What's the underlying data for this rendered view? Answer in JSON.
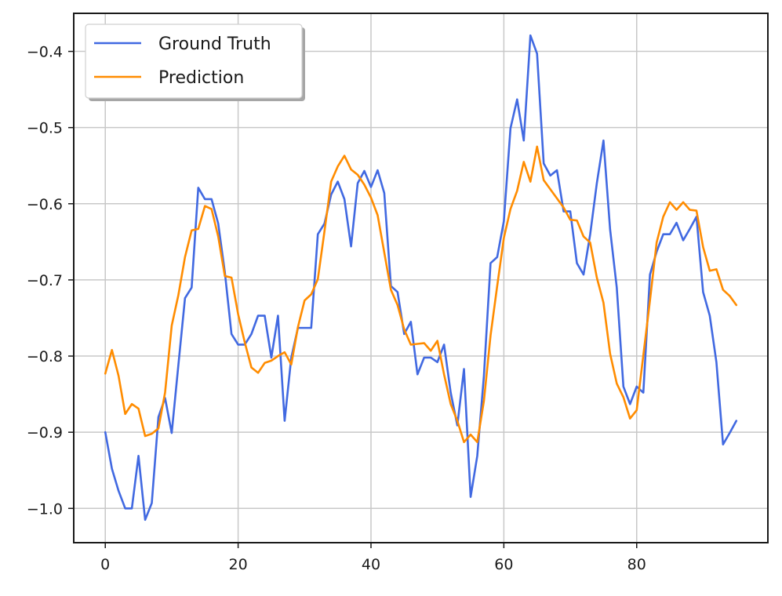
{
  "chart_data": {
    "type": "line",
    "title": "",
    "xlabel": "",
    "ylabel": "",
    "xlim": [
      -4.75,
      99.75
    ],
    "ylim": [
      -1.045,
      -0.35
    ],
    "xticks": [
      0,
      20,
      40,
      60,
      80
    ],
    "yticks": [
      -1.0,
      -0.9,
      -0.8,
      -0.7,
      -0.6,
      -0.5,
      -0.4
    ],
    "ytick_labels": [
      "−1.0",
      "−0.9",
      "−0.8",
      "−0.7",
      "−0.6",
      "−0.5",
      "−0.4"
    ],
    "xtick_labels": [
      "0",
      "20",
      "40",
      "60",
      "80"
    ],
    "grid": true,
    "legend_position": "top-left",
    "x": [
      0,
      1,
      2,
      3,
      4,
      5,
      6,
      7,
      8,
      9,
      10,
      11,
      12,
      13,
      14,
      15,
      16,
      17,
      18,
      19,
      20,
      21,
      22,
      23,
      24,
      25,
      26,
      27,
      28,
      29,
      30,
      31,
      32,
      33,
      34,
      35,
      36,
      37,
      38,
      39,
      40,
      41,
      42,
      43,
      44,
      45,
      46,
      47,
      48,
      49,
      50,
      51,
      52,
      53,
      54,
      55,
      56,
      57,
      58,
      59,
      60,
      61,
      62,
      63,
      64,
      65,
      66,
      67,
      68,
      69,
      70,
      71,
      72,
      73,
      74,
      75,
      76,
      77,
      78,
      79,
      80,
      81,
      82,
      83,
      84,
      85,
      86,
      87,
      88,
      89,
      90,
      91,
      92,
      93,
      94,
      95
    ],
    "series": [
      {
        "name": "Ground Truth",
        "color": "#4169e1",
        "values": [
          -0.9,
          -0.948,
          -0.977,
          -1.0,
          -1.0,
          -0.931,
          -1.015,
          -0.993,
          -0.88,
          -0.855,
          -0.901,
          -0.812,
          -0.724,
          -0.71,
          -0.579,
          -0.594,
          -0.594,
          -0.626,
          -0.69,
          -0.771,
          -0.785,
          -0.785,
          -0.771,
          -0.747,
          -0.747,
          -0.802,
          -0.747,
          -0.885,
          -0.802,
          -0.763,
          -0.763,
          -0.763,
          -0.64,
          -0.626,
          -0.588,
          -0.571,
          -0.594,
          -0.656,
          -0.573,
          -0.557,
          -0.578,
          -0.556,
          -0.586,
          -0.708,
          -0.716,
          -0.771,
          -0.755,
          -0.824,
          -0.802,
          -0.802,
          -0.808,
          -0.785,
          -0.848,
          -0.891,
          -0.817,
          -0.985,
          -0.931,
          -0.826,
          -0.678,
          -0.67,
          -0.623,
          -0.501,
          -0.463,
          -0.517,
          -0.379,
          -0.403,
          -0.547,
          -0.563,
          -0.556,
          -0.61,
          -0.61,
          -0.678,
          -0.693,
          -0.64,
          -0.573,
          -0.517,
          -0.634,
          -0.71,
          -0.84,
          -0.863,
          -0.84,
          -0.848,
          -0.693,
          -0.663,
          -0.64,
          -0.64,
          -0.625,
          -0.648,
          -0.633,
          -0.617,
          -0.716,
          -0.747,
          -0.808,
          -0.916,
          -0.901,
          -0.885
        ]
      },
      {
        "name": "Prediction",
        "color": "#ff8c00",
        "values": [
          -0.823,
          -0.792,
          -0.826,
          -0.876,
          -0.863,
          -0.869,
          -0.905,
          -0.902,
          -0.895,
          -0.848,
          -0.76,
          -0.72,
          -0.67,
          -0.635,
          -0.633,
          -0.603,
          -0.607,
          -0.643,
          -0.695,
          -0.697,
          -0.745,
          -0.782,
          -0.815,
          -0.822,
          -0.809,
          -0.806,
          -0.8,
          -0.795,
          -0.811,
          -0.762,
          -0.727,
          -0.719,
          -0.699,
          -0.636,
          -0.571,
          -0.551,
          -0.537,
          -0.555,
          -0.562,
          -0.575,
          -0.592,
          -0.615,
          -0.664,
          -0.713,
          -0.733,
          -0.765,
          -0.785,
          -0.784,
          -0.783,
          -0.793,
          -0.78,
          -0.824,
          -0.863,
          -0.885,
          -0.913,
          -0.903,
          -0.913,
          -0.859,
          -0.773,
          -0.708,
          -0.645,
          -0.607,
          -0.583,
          -0.545,
          -0.571,
          -0.525,
          -0.569,
          -0.581,
          -0.593,
          -0.605,
          -0.621,
          -0.622,
          -0.643,
          -0.651,
          -0.697,
          -0.73,
          -0.797,
          -0.836,
          -0.854,
          -0.882,
          -0.871,
          -0.799,
          -0.727,
          -0.651,
          -0.617,
          -0.598,
          -0.608,
          -0.598,
          -0.608,
          -0.609,
          -0.657,
          -0.688,
          -0.686,
          -0.713,
          -0.721,
          -0.733
        ]
      }
    ]
  }
}
